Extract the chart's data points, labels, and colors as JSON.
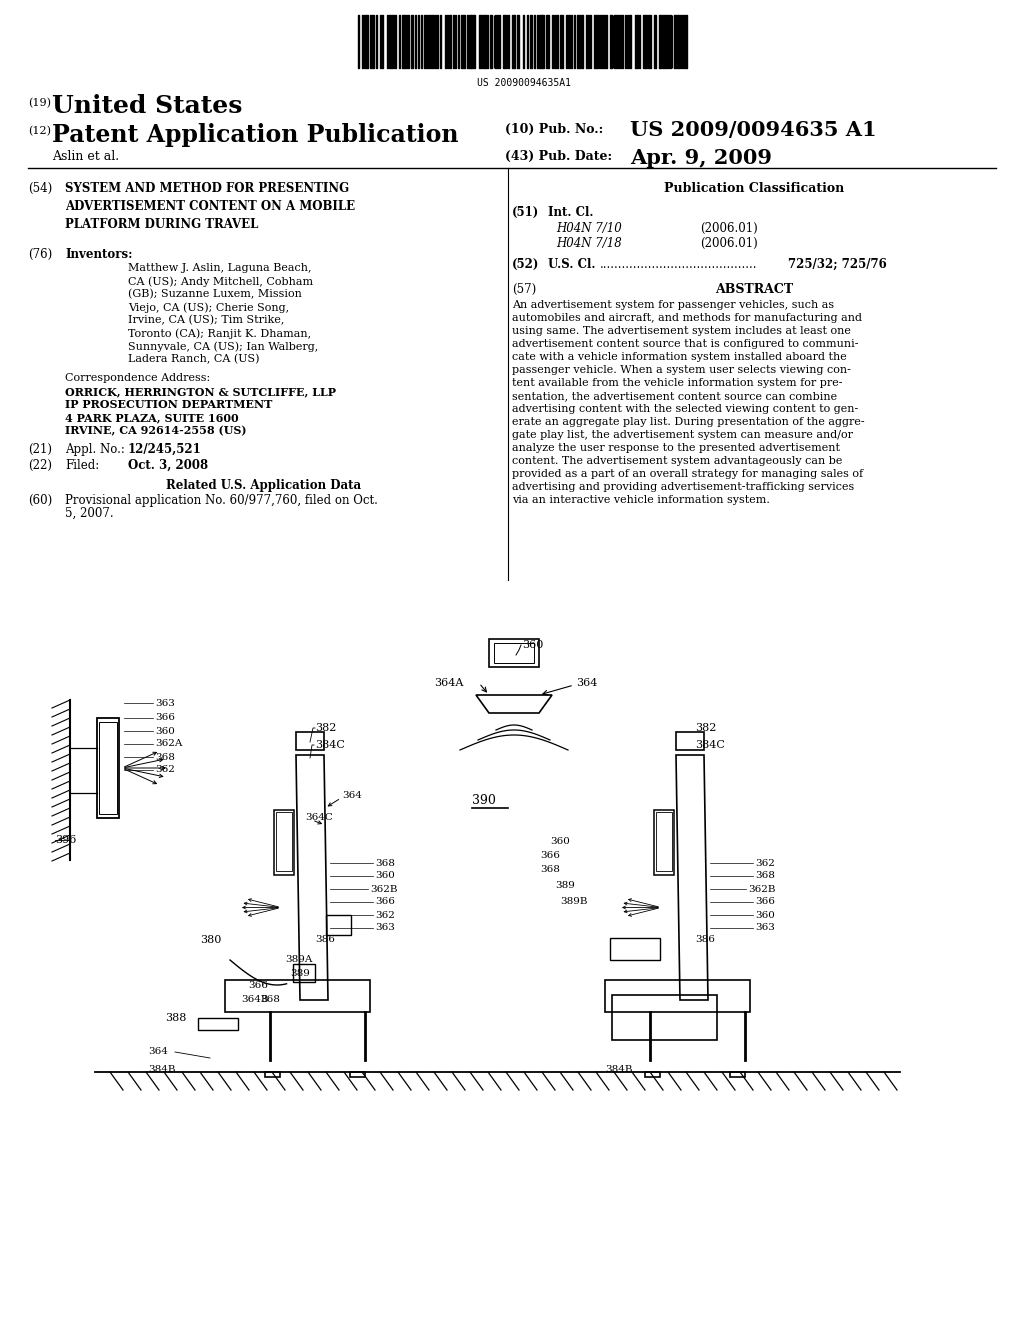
{
  "bg_color": "#ffffff",
  "barcode_text": "US 20090094635A1",
  "title_19": "United States",
  "title_12": "Patent Application Publication",
  "pub_no_label": "(10) Pub. No.:",
  "pub_no_value": "US 2009/0094635 A1",
  "pub_date_label": "(43) Pub. Date:",
  "pub_date_value": "Apr. 9, 2009",
  "author": "Aslin et al.",
  "section54_title": "SYSTEM AND METHOD FOR PRESENTING\nADVERTISEMENT CONTENT ON A MOBILE\nPLATFORM DURING TRAVEL",
  "section76_text": "Matthew J. Aslin, Laguna Beach,\nCA (US); Andy Mitchell, Cobham\n(GB); Suzanne Luxem, Mission\nViejo, CA (US); Cherie Song,\nIrvine, CA (US); Tim Strike,\nToronto (CA); Ranjit K. Dhaman,\nSunnyvale, CA (US); Ian Walberg,\nLadera Ranch, CA (US)",
  "corr_label": "Correspondence Address:",
  "corr_text": "ORRICK, HERRINGTON & SUTCLIFFE, LLP\nIP PROSECUTION DEPARTMENT\n4 PARK PLAZA, SUITE 1600\nIRVINE, CA 92614-2558 (US)",
  "appl_value": "12/245,521",
  "filed_value": "Oct. 3, 2008",
  "related_title": "Related U.S. Application Data",
  "section60_text": "Provisional application No. 60/977,760, filed on Oct.\n5, 2007.",
  "pub_class_title": "Publication Classification",
  "intcl_entries": [
    [
      "H04N 7/10",
      "(2006.01)"
    ],
    [
      "H04N 7/18",
      "(2006.01)"
    ]
  ],
  "uscl_value": "725/32; 725/76",
  "abstract_title": "ABSTRACT",
  "abstract_text": "An advertisement system for passenger vehicles, such as\nautomobiles and aircraft, and methods for manufacturing and\nusing same. The advertisement system includes at least one\nadvertisement content source that is configured to communi-\ncate with a vehicle information system installed aboard the\npassenger vehicle. When a system user selects viewing con-\ntent available from the vehicle information system for pre-\nsentation, the advertisement content source can combine\nadvertising content with the selected viewing content to gen-\nerate an aggregate play list. During presentation of the aggre-\ngate play list, the advertisement system can measure and/or\nanalyze the user response to the presented advertisement\ncontent. The advertisement system advantageously can be\nprovided as a part of an overall strategy for managing sales of\nadvertising and providing advertisement-trafficking services\nvia an interactive vehicle information system."
}
